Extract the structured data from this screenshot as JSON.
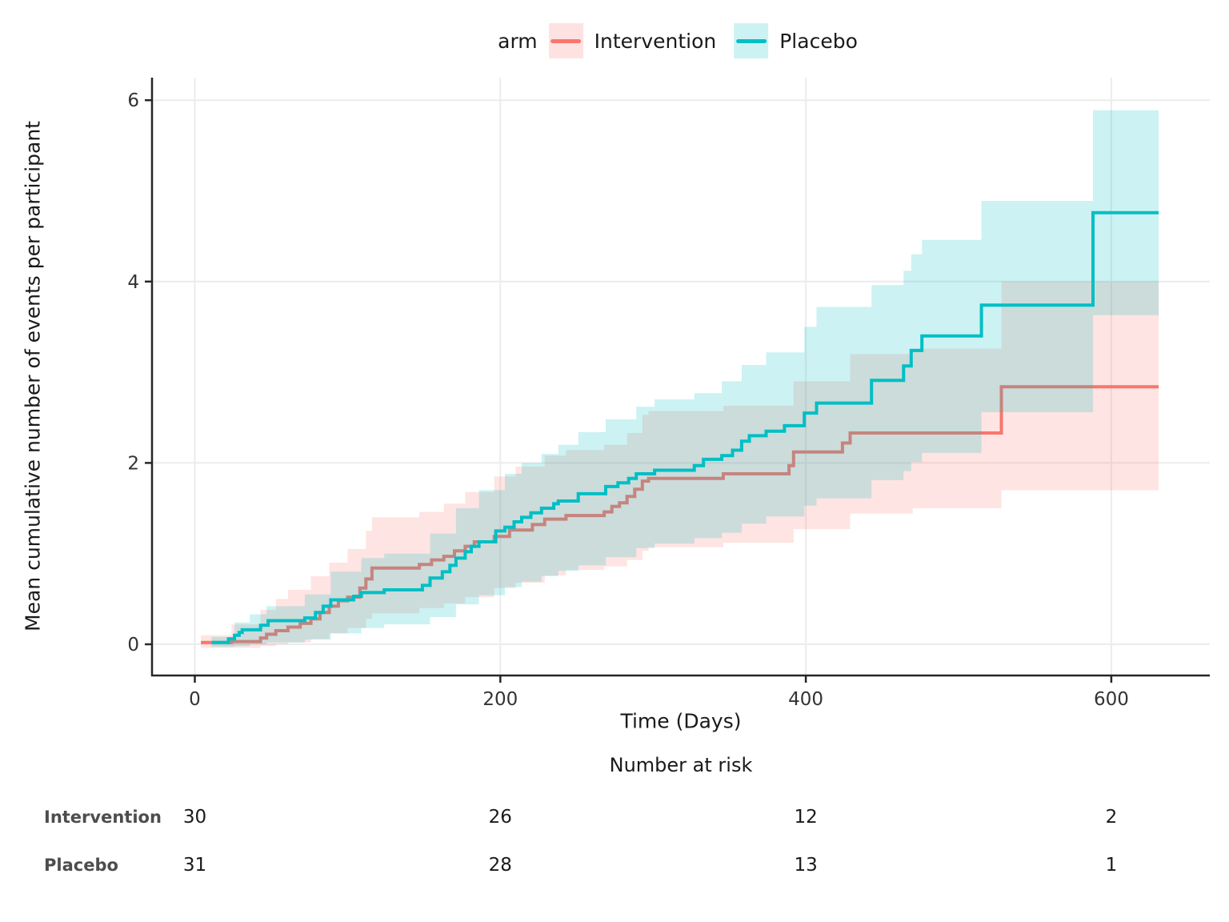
{
  "legend": {
    "title": "arm",
    "items": [
      {
        "label": "Intervention",
        "color": "#F8766D",
        "fill": "#FDE2E1"
      },
      {
        "label": "Placebo",
        "color": "#00BFC4",
        "fill": "#CCF2F3"
      }
    ]
  },
  "y_axis": {
    "title": "Mean cumulative number of events per participant",
    "tick_values": [
      0,
      2,
      4,
      6
    ],
    "tick_labels": [
      "0",
      "2",
      "4",
      "6"
    ],
    "range": [
      0,
      6
    ]
  },
  "x_axis": {
    "title": "Time (Days)",
    "tick_values": [
      0,
      200,
      400,
      600
    ],
    "tick_labels": [
      "0",
      "200",
      "400",
      "600"
    ],
    "range": [
      0,
      665
    ]
  },
  "risk_table": {
    "title": "Number at risk",
    "time_points": [
      0,
      200,
      400,
      600
    ],
    "rows": [
      {
        "label": "Intervention",
        "counts": [
          "30",
          "26",
          "12",
          "2"
        ]
      },
      {
        "label": "Placebo",
        "counts": [
          "31",
          "28",
          "13",
          "1"
        ]
      }
    ]
  },
  "colors": {
    "grid": "#ECECEC",
    "axis": "#262626",
    "tick_text": "#333333",
    "intervention": "#F8766D",
    "placebo": "#00BFC4"
  },
  "chart_data": {
    "type": "line",
    "step": true,
    "title": "",
    "xlabel": "Time (Days)",
    "ylabel": "Mean cumulative number of events per participant",
    "xlim": [
      0,
      665
    ],
    "ylim": [
      0,
      6
    ],
    "grid": true,
    "legend_position": "top",
    "ribbon_opacity": 0.2,
    "series": [
      {
        "name": "Intervention",
        "color": "#F8766D",
        "steps": [
          [
            4,
            0.02
          ],
          [
            24,
            0.03
          ],
          [
            43,
            0.07
          ],
          [
            47,
            0.11
          ],
          [
            53,
            0.15
          ],
          [
            61,
            0.19
          ],
          [
            69,
            0.23
          ],
          [
            76,
            0.28
          ],
          [
            82,
            0.35
          ],
          [
            88,
            0.42
          ],
          [
            94,
            0.48
          ],
          [
            100,
            0.52
          ],
          [
            108,
            0.62
          ],
          [
            112,
            0.72
          ],
          [
            116,
            0.84
          ],
          [
            147,
            0.88
          ],
          [
            155,
            0.93
          ],
          [
            163,
            0.97
          ],
          [
            170,
            1.03
          ],
          [
            177,
            1.08
          ],
          [
            183,
            1.13
          ],
          [
            196,
            1.19
          ],
          [
            206,
            1.26
          ],
          [
            221,
            1.32
          ],
          [
            229,
            1.38
          ],
          [
            243,
            1.42
          ],
          [
            268,
            1.46
          ],
          [
            273,
            1.52
          ],
          [
            278,
            1.56
          ],
          [
            283,
            1.63
          ],
          [
            288,
            1.71
          ],
          [
            293,
            1.8
          ],
          [
            297,
            1.83
          ],
          [
            346,
            1.88
          ],
          [
            389,
            1.97
          ],
          [
            392,
            2.12
          ],
          [
            424,
            2.22
          ],
          [
            429,
            2.33
          ],
          [
            528,
            2.84
          ],
          [
            631,
            2.84
          ]
        ],
        "ribbon": [
          [
            4,
            -0.04,
            0.1
          ],
          [
            24,
            -0.04,
            0.22
          ],
          [
            43,
            -0.02,
            0.38
          ],
          [
            53,
            0.0,
            0.5
          ],
          [
            61,
            0.02,
            0.6
          ],
          [
            76,
            0.06,
            0.75
          ],
          [
            88,
            0.12,
            0.9
          ],
          [
            100,
            0.18,
            1.05
          ],
          [
            112,
            0.28,
            1.25
          ],
          [
            116,
            0.34,
            1.4
          ],
          [
            147,
            0.4,
            1.46
          ],
          [
            163,
            0.45,
            1.55
          ],
          [
            177,
            0.52,
            1.68
          ],
          [
            196,
            0.62,
            1.85
          ],
          [
            210,
            0.68,
            1.96
          ],
          [
            229,
            0.76,
            2.08
          ],
          [
            243,
            0.82,
            2.14
          ],
          [
            268,
            0.86,
            2.2
          ],
          [
            283,
            0.93,
            2.33
          ],
          [
            293,
            1.03,
            2.53
          ],
          [
            297,
            1.07,
            2.57
          ],
          [
            346,
            1.12,
            2.63
          ],
          [
            392,
            1.27,
            2.9
          ],
          [
            429,
            1.44,
            3.2
          ],
          [
            470,
            1.5,
            3.26
          ],
          [
            528,
            1.7,
            4.0
          ],
          [
            631,
            1.7,
            4.0
          ]
        ]
      },
      {
        "name": "Placebo",
        "color": "#00BFC4",
        "steps": [
          [
            11,
            0.02
          ],
          [
            22,
            0.06
          ],
          [
            26,
            0.1
          ],
          [
            29,
            0.13
          ],
          [
            31,
            0.16
          ],
          [
            43,
            0.21
          ],
          [
            48,
            0.26
          ],
          [
            72,
            0.29
          ],
          [
            79,
            0.35
          ],
          [
            84,
            0.42
          ],
          [
            89,
            0.49
          ],
          [
            104,
            0.53
          ],
          [
            109,
            0.57
          ],
          [
            124,
            0.6
          ],
          [
            149,
            0.65
          ],
          [
            154,
            0.73
          ],
          [
            162,
            0.8
          ],
          [
            167,
            0.87
          ],
          [
            171,
            0.95
          ],
          [
            177,
            1.02
          ],
          [
            181,
            1.08
          ],
          [
            186,
            1.13
          ],
          [
            197,
            1.25
          ],
          [
            203,
            1.29
          ],
          [
            209,
            1.35
          ],
          [
            214,
            1.4
          ],
          [
            220,
            1.45
          ],
          [
            227,
            1.5
          ],
          [
            235,
            1.55
          ],
          [
            238,
            1.58
          ],
          [
            251,
            1.66
          ],
          [
            269,
            1.74
          ],
          [
            277,
            1.78
          ],
          [
            284,
            1.83
          ],
          [
            289,
            1.88
          ],
          [
            301,
            1.92
          ],
          [
            327,
            1.97
          ],
          [
            333,
            2.04
          ],
          [
            345,
            2.08
          ],
          [
            352,
            2.14
          ],
          [
            358,
            2.24
          ],
          [
            363,
            2.3
          ],
          [
            374,
            2.35
          ],
          [
            386,
            2.41
          ],
          [
            399,
            2.55
          ],
          [
            407,
            2.66
          ],
          [
            443,
            2.91
          ],
          [
            464,
            3.07
          ],
          [
            469,
            3.24
          ],
          [
            476,
            3.4
          ],
          [
            515,
            3.74
          ],
          [
            588,
            4.76
          ],
          [
            631,
            4.76
          ]
        ],
        "ribbon": [
          [
            11,
            -0.03,
            0.08
          ],
          [
            26,
            -0.02,
            0.24
          ],
          [
            36,
            0.0,
            0.33
          ],
          [
            47,
            0.02,
            0.42
          ],
          [
            72,
            0.05,
            0.55
          ],
          [
            89,
            0.12,
            0.8
          ],
          [
            109,
            0.18,
            0.95
          ],
          [
            124,
            0.22,
            1.0
          ],
          [
            154,
            0.3,
            1.22
          ],
          [
            171,
            0.44,
            1.5
          ],
          [
            186,
            0.54,
            1.7
          ],
          [
            203,
            0.63,
            1.88
          ],
          [
            214,
            0.69,
            2.0
          ],
          [
            227,
            0.75,
            2.1
          ],
          [
            238,
            0.81,
            2.2
          ],
          [
            251,
            0.87,
            2.34
          ],
          [
            269,
            0.96,
            2.48
          ],
          [
            289,
            1.06,
            2.62
          ],
          [
            301,
            1.11,
            2.7
          ],
          [
            327,
            1.17,
            2.77
          ],
          [
            345,
            1.23,
            2.9
          ],
          [
            358,
            1.33,
            3.08
          ],
          [
            374,
            1.41,
            3.22
          ],
          [
            399,
            1.53,
            3.5
          ],
          [
            407,
            1.61,
            3.72
          ],
          [
            443,
            1.81,
            3.96
          ],
          [
            464,
            1.91,
            4.12
          ],
          [
            469,
            2.01,
            4.3
          ],
          [
            476,
            2.11,
            4.46
          ],
          [
            515,
            2.56,
            4.89
          ],
          [
            588,
            3.63,
            5.89
          ],
          [
            631,
            3.63,
            5.89
          ]
        ]
      }
    ]
  }
}
